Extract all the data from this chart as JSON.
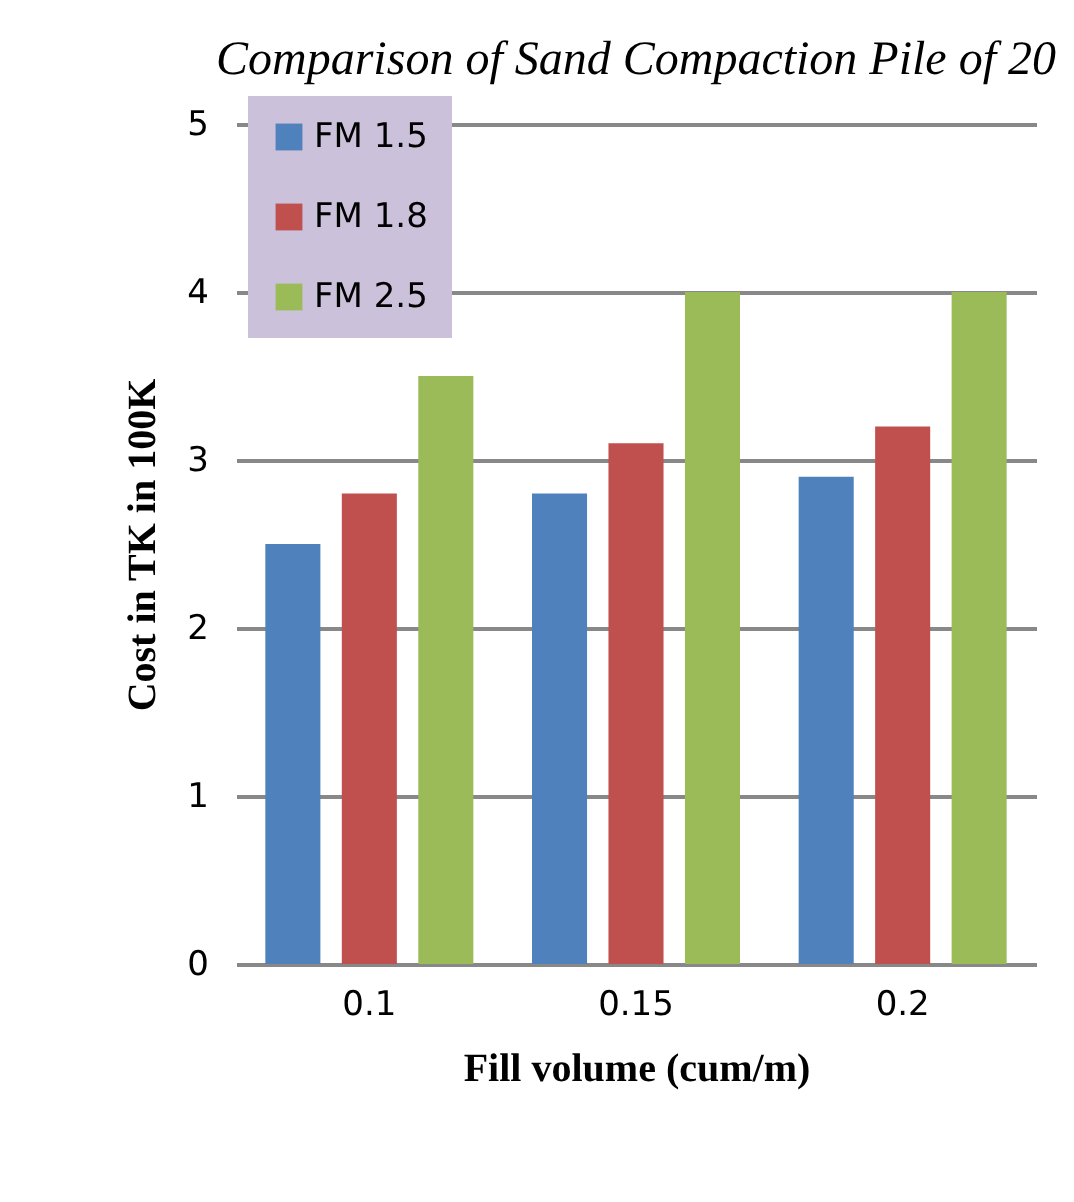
{
  "chart_data": {
    "type": "bar",
    "title": "Comparison of Sand Compaction Pile of 20",
    "xlabel": "Fill volume (cum/m)",
    "ylabel": "Cost in TK in 100K",
    "categories": [
      "0.1",
      "0.15",
      "0.2"
    ],
    "series": [
      {
        "name": "FM 1.5",
        "color": "#4f81bd",
        "values": [
          2.5,
          2.8,
          2.9
        ]
      },
      {
        "name": "FM 1.8",
        "color": "#c0504d",
        "values": [
          2.8,
          3.1,
          3.2
        ]
      },
      {
        "name": "FM 2.5",
        "color": "#9bbb59",
        "values": [
          3.5,
          4.0,
          4.0
        ]
      }
    ],
    "ylim": [
      0,
      5
    ],
    "yticks": [
      0,
      1,
      2,
      3,
      4,
      5
    ],
    "grid": "y",
    "legend": "top left"
  }
}
